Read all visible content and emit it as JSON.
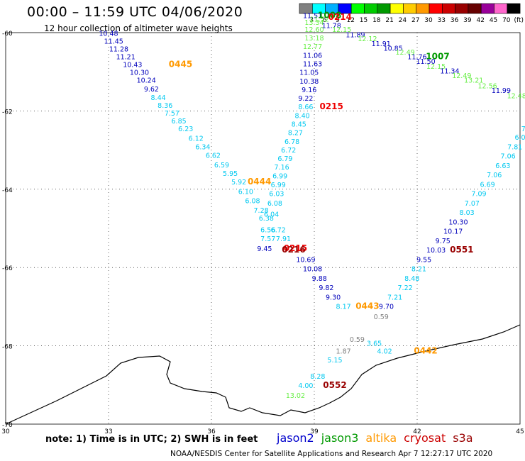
{
  "header": {
    "title": "00:00 – 11:59 UTC 04/06/2020",
    "subtitle": "12 hour collection of altimeter wave heights"
  },
  "colorbar": {
    "unit_label": "(ft)",
    "bins": [
      {
        "label": "3",
        "color": "#808080"
      },
      {
        "label": "6",
        "color": "#00ffff"
      },
      {
        "label": "9",
        "color": "#00b0ff"
      },
      {
        "label": "12",
        "color": "#0000ff"
      },
      {
        "label": "15",
        "color": "#00ff00"
      },
      {
        "label": "18",
        "color": "#00cc00"
      },
      {
        "label": "21",
        "color": "#009900"
      },
      {
        "label": "24",
        "color": "#ffff00"
      },
      {
        "label": "27",
        "color": "#ffcc00"
      },
      {
        "label": "30",
        "color": "#ff9900"
      },
      {
        "label": "33",
        "color": "#ff0000"
      },
      {
        "label": "36",
        "color": "#cc0000"
      },
      {
        "label": "39",
        "color": "#990000"
      },
      {
        "label": "42",
        "color": "#660000"
      },
      {
        "label": "45",
        "color": "#990099"
      },
      {
        "label": "70",
        "color": "#ff66cc"
      },
      {
        "label": "",
        "color": "#000000"
      }
    ]
  },
  "footer": {
    "note": "note: 1) Time is in UTC; 2) SWH is in feet",
    "satellites": [
      {
        "name": "jason2",
        "color": "#0000cc"
      },
      {
        "name": "jason3",
        "color": "#009900"
      },
      {
        "name": "altika",
        "color": "#ff9900"
      },
      {
        "name": "cryosat",
        "color": "#cc0000"
      },
      {
        "name": "s3a",
        "color": "#990000"
      }
    ],
    "credit": "NOAA/NESDIS Center for Satellite Applications and Research   Apr  7 12:27:17 UTC 2020"
  },
  "colors": {
    "grey": "#808080",
    "cyan": "#00c8f0",
    "navy": "#0000bb",
    "lightgreen": "#66ee44",
    "green": "#009900",
    "orange": "#ff9900",
    "red": "#ee0000",
    "darkred": "#990000"
  },
  "chart_data": {
    "type": "scatter",
    "title": "00:00 – 11:59 UTC 04/06/2020",
    "subtitle": "12 hour collection of altimeter wave heights",
    "xlim": [
      30,
      45
    ],
    "ylim": [
      -70,
      -60
    ],
    "x_ticks": [
      "30",
      "33",
      "36",
      "39",
      "42",
      "45"
    ],
    "y_ticks": [
      "-60",
      "-62",
      "-64",
      "-66",
      "-68",
      "-70"
    ],
    "grid": true,
    "swh_unit": "ft",
    "labels": [
      {
        "text": "10.48",
        "x": 33.0,
        "y": -60.08,
        "c": "navy"
      },
      {
        "text": "11.45",
        "x": 33.15,
        "y": -60.28,
        "c": "navy"
      },
      {
        "text": "11.28",
        "x": 33.3,
        "y": -60.48,
        "c": "navy"
      },
      {
        "text": "11.21",
        "x": 33.5,
        "y": -60.68,
        "c": "navy"
      },
      {
        "text": "10.43",
        "x": 33.7,
        "y": -60.88,
        "c": "navy"
      },
      {
        "text": "0445",
        "x": 35.1,
        "y": -60.88,
        "c": "orange",
        "big": true
      },
      {
        "text": "10.30",
        "x": 33.9,
        "y": -61.08,
        "c": "navy"
      },
      {
        "text": "10.24",
        "x": 34.1,
        "y": -61.28,
        "c": "navy"
      },
      {
        "text": "9.62",
        "x": 34.25,
        "y": -61.5,
        "c": "navy"
      },
      {
        "text": "8.44",
        "x": 34.45,
        "y": -61.72,
        "c": "cyan"
      },
      {
        "text": "8.36",
        "x": 34.65,
        "y": -61.92,
        "c": "cyan"
      },
      {
        "text": "7.57",
        "x": 34.85,
        "y": -62.12,
        "c": "cyan"
      },
      {
        "text": "6.85",
        "x": 35.05,
        "y": -62.32,
        "c": "cyan"
      },
      {
        "text": "6.23",
        "x": 35.25,
        "y": -62.52,
        "c": "cyan"
      },
      {
        "text": "6.12",
        "x": 35.55,
        "y": -62.76,
        "c": "cyan"
      },
      {
        "text": "6.34",
        "x": 35.75,
        "y": -62.98,
        "c": "cyan"
      },
      {
        "text": "6.62",
        "x": 36.05,
        "y": -63.2,
        "c": "cyan"
      },
      {
        "text": "6.59",
        "x": 36.3,
        "y": -63.44,
        "c": "cyan"
      },
      {
        "text": "5.95",
        "x": 36.55,
        "y": -63.66,
        "c": "cyan"
      },
      {
        "text": "5.92",
        "x": 36.8,
        "y": -63.88,
        "c": "cyan"
      },
      {
        "text": "0444",
        "x": 37.4,
        "y": -63.88,
        "c": "orange",
        "big": true
      },
      {
        "text": "6.10",
        "x": 37.0,
        "y": -64.12,
        "c": "cyan"
      },
      {
        "text": "6.08",
        "x": 37.2,
        "y": -64.36,
        "c": "cyan"
      },
      {
        "text": "7.28",
        "x": 37.45,
        "y": -64.6,
        "c": "cyan"
      },
      {
        "text": "6.38",
        "x": 37.6,
        "y": -64.8,
        "c": "cyan"
      },
      {
        "text": "6.56",
        "x": 37.65,
        "y": -65.1,
        "c": "cyan"
      },
      {
        "text": "7.57",
        "x": 37.65,
        "y": -65.33,
        "c": "cyan"
      },
      {
        "text": "9.45",
        "x": 37.55,
        "y": -65.58,
        "c": "navy"
      },
      {
        "text": "0215",
        "x": 38.45,
        "y": -65.58,
        "c": "red",
        "big": true
      },
      {
        "text": "7.91",
        "x": 38.1,
        "y": -65.33,
        "c": "cyan"
      },
      {
        "text": "6.72",
        "x": 37.95,
        "y": -65.1,
        "c": "cyan"
      },
      {
        "text": "6.04",
        "x": 37.75,
        "y": -64.7,
        "c": "cyan"
      },
      {
        "text": "6.08",
        "x": 37.85,
        "y": -64.42,
        "c": "cyan"
      },
      {
        "text": "6.03",
        "x": 37.9,
        "y": -64.18,
        "c": "cyan"
      },
      {
        "text": "6.99",
        "x": 37.95,
        "y": -63.95,
        "c": "cyan"
      },
      {
        "text": "6.99",
        "x": 38.0,
        "y": -63.72,
        "c": "cyan"
      },
      {
        "text": "7.16",
        "x": 38.05,
        "y": -63.5,
        "c": "cyan"
      },
      {
        "text": "6.79",
        "x": 38.15,
        "y": -63.28,
        "c": "cyan"
      },
      {
        "text": "6.72",
        "x": 38.25,
        "y": -63.06,
        "c": "cyan"
      },
      {
        "text": "6.78",
        "x": 38.35,
        "y": -62.84,
        "c": "cyan"
      },
      {
        "text": "8.27",
        "x": 38.45,
        "y": -62.62,
        "c": "cyan"
      },
      {
        "text": "8.45",
        "x": 38.55,
        "y": -62.4,
        "c": "cyan"
      },
      {
        "text": "8.40",
        "x": 38.65,
        "y": -62.18,
        "c": "cyan"
      },
      {
        "text": "8.66",
        "x": 38.75,
        "y": -61.96,
        "c": "cyan"
      },
      {
        "text": "0215",
        "x": 39.5,
        "y": -61.96,
        "c": "red",
        "big": true
      },
      {
        "text": "9.22",
        "x": 38.75,
        "y": -61.74,
        "c": "navy"
      },
      {
        "text": "9.16",
        "x": 38.85,
        "y": -61.52,
        "c": "navy"
      },
      {
        "text": "10.38",
        "x": 38.85,
        "y": -61.3,
        "c": "navy"
      },
      {
        "text": "11.05",
        "x": 38.85,
        "y": -61.08,
        "c": "navy"
      },
      {
        "text": "11.63",
        "x": 38.95,
        "y": -60.86,
        "c": "navy"
      },
      {
        "text": "11.06",
        "x": 38.95,
        "y": -60.64,
        "c": "navy"
      },
      {
        "text": "12.77",
        "x": 38.95,
        "y": -60.42,
        "c": "lightgreen"
      },
      {
        "text": "13.18",
        "x": 39.0,
        "y": -60.2,
        "c": "lightgreen"
      },
      {
        "text": "12.60",
        "x": 39.0,
        "y": -59.98,
        "c": "lightgreen"
      },
      {
        "text": "13.34",
        "x": 39.0,
        "y": -59.8,
        "c": "lightgreen"
      },
      {
        "text": "11.51",
        "x": 38.95,
        "y": -59.63,
        "c": "navy"
      },
      {
        "text": "11.52",
        "x": 39.15,
        "y": -59.72,
        "c": "lightgreen"
      },
      {
        "text": "1008",
        "x": 39.45,
        "y": -59.63,
        "c": "green",
        "big": true
      },
      {
        "text": "0214",
        "x": 39.75,
        "y": -59.67,
        "c": "red",
        "big": true
      },
      {
        "text": "11.78",
        "x": 39.5,
        "y": -59.88,
        "c": "navy"
      },
      {
        "text": "12.15",
        "x": 39.8,
        "y": -59.98,
        "c": "lightgreen"
      },
      {
        "text": "11.89",
        "x": 40.2,
        "y": -60.12,
        "c": "navy"
      },
      {
        "text": "12.12",
        "x": 40.55,
        "y": -60.22,
        "c": "lightgreen"
      },
      {
        "text": "11.91",
        "x": 40.95,
        "y": -60.34,
        "c": "navy"
      },
      {
        "text": "10.85",
        "x": 41.3,
        "y": -60.46,
        "c": "navy"
      },
      {
        "text": "12.49",
        "x": 41.65,
        "y": -60.56,
        "c": "lightgreen"
      },
      {
        "text": "11.76",
        "x": 42.0,
        "y": -60.68,
        "c": "navy"
      },
      {
        "text": "1007",
        "x": 42.6,
        "y": -60.68,
        "c": "green",
        "big": true
      },
      {
        "text": "11.50",
        "x": 42.25,
        "y": -60.8,
        "c": "navy"
      },
      {
        "text": "12.15",
        "x": 42.55,
        "y": -60.92,
        "c": "lightgreen"
      },
      {
        "text": "11.34",
        "x": 42.95,
        "y": -61.04,
        "c": "navy"
      },
      {
        "text": "12.49",
        "x": 43.3,
        "y": -61.16,
        "c": "lightgreen"
      },
      {
        "text": "13.21",
        "x": 43.65,
        "y": -61.28,
        "c": "lightgreen"
      },
      {
        "text": "12.56",
        "x": 44.05,
        "y": -61.42,
        "c": "lightgreen"
      },
      {
        "text": "11.99",
        "x": 44.45,
        "y": -61.54,
        "c": "navy"
      },
      {
        "text": "12.48",
        "x": 44.9,
        "y": -61.68,
        "c": "lightgreen"
      },
      {
        "text": "0216",
        "x": 38.4,
        "y": -65.62,
        "c": "darkred",
        "big": true
      },
      {
        "text": "10.69",
        "x": 38.75,
        "y": -65.86,
        "c": "navy"
      },
      {
        "text": "10.08",
        "x": 38.95,
        "y": -66.1,
        "c": "navy"
      },
      {
        "text": "9.88",
        "x": 39.15,
        "y": -66.34,
        "c": "navy"
      },
      {
        "text": "9.82",
        "x": 39.35,
        "y": -66.58,
        "c": "navy"
      },
      {
        "text": "9.30",
        "x": 39.55,
        "y": -66.82,
        "c": "navy"
      },
      {
        "text": "8.17",
        "x": 39.85,
        "y": -67.06,
        "c": "cyan"
      },
      {
        "text": "0443",
        "x": 40.55,
        "y": -67.06,
        "c": "orange",
        "big": true
      },
      {
        "text": "9.70",
        "x": 41.1,
        "y": -67.06,
        "c": "navy"
      },
      {
        "text": "0.59",
        "x": 40.95,
        "y": -67.32,
        "c": "grey"
      },
      {
        "text": "7.21",
        "x": 41.35,
        "y": -66.82,
        "c": "cyan"
      },
      {
        "text": "7.22",
        "x": 41.65,
        "y": -66.58,
        "c": "cyan"
      },
      {
        "text": "8.48",
        "x": 41.85,
        "y": -66.34,
        "c": "cyan"
      },
      {
        "text": "8.21",
        "x": 42.05,
        "y": -66.1,
        "c": "cyan"
      },
      {
        "text": "9.55",
        "x": 42.2,
        "y": -65.86,
        "c": "navy"
      },
      {
        "text": "10.03",
        "x": 42.55,
        "y": -65.62,
        "c": "navy"
      },
      {
        "text": "0551",
        "x": 43.3,
        "y": -65.62,
        "c": "darkred",
        "big": true
      },
      {
        "text": "9.75",
        "x": 42.75,
        "y": -65.38,
        "c": "navy"
      },
      {
        "text": "10.17",
        "x": 43.05,
        "y": -65.14,
        "c": "navy"
      },
      {
        "text": "10.30",
        "x": 43.2,
        "y": -64.9,
        "c": "navy"
      },
      {
        "text": "8.03",
        "x": 43.45,
        "y": -64.66,
        "c": "cyan"
      },
      {
        "text": "7.07",
        "x": 43.6,
        "y": -64.42,
        "c": "cyan"
      },
      {
        "text": "7.09",
        "x": 43.8,
        "y": -64.18,
        "c": "cyan"
      },
      {
        "text": "6.69",
        "x": 44.05,
        "y": -63.94,
        "c": "cyan"
      },
      {
        "text": "7.06",
        "x": 44.25,
        "y": -63.7,
        "c": "cyan"
      },
      {
        "text": "6.63",
        "x": 44.5,
        "y": -63.46,
        "c": "cyan"
      },
      {
        "text": "7.06",
        "x": 44.65,
        "y": -63.22,
        "c": "cyan"
      },
      {
        "text": "7.81",
        "x": 44.85,
        "y": -62.98,
        "c": "cyan"
      },
      {
        "text": "6.0",
        "x": 45.0,
        "y": -62.74,
        "c": "cyan"
      },
      {
        "text": "7",
        "x": 45.1,
        "y": -62.52,
        "c": "cyan"
      },
      {
        "text": "0.59",
        "x": 40.25,
        "y": -67.9,
        "c": "grey"
      },
      {
        "text": "3.65",
        "x": 40.75,
        "y": -68.0,
        "c": "cyan"
      },
      {
        "text": "1.87",
        "x": 39.85,
        "y": -68.2,
        "c": "grey"
      },
      {
        "text": "4.02",
        "x": 41.05,
        "y": -68.2,
        "c": "cyan"
      },
      {
        "text": "0442",
        "x": 42.25,
        "y": -68.2,
        "c": "orange",
        "big": true
      },
      {
        "text": "5.15",
        "x": 39.6,
        "y": -68.42,
        "c": "cyan"
      },
      {
        "text": "8.28",
        "x": 39.1,
        "y": -68.84,
        "c": "cyan"
      },
      {
        "text": "4.00",
        "x": 38.75,
        "y": -69.08,
        "c": "cyan"
      },
      {
        "text": "0552",
        "x": 39.6,
        "y": -69.08,
        "c": "darkred",
        "big": true
      },
      {
        "text": "13.02",
        "x": 38.45,
        "y": -69.33,
        "c": "lightgreen"
      }
    ]
  }
}
